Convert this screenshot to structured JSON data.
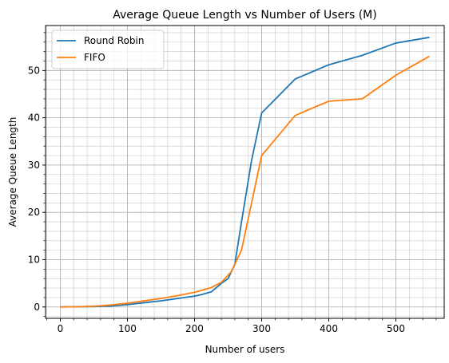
{
  "chart_data": {
    "type": "line",
    "title": "Average Queue Length vs Number of Users (M)",
    "xlabel": "Number of users",
    "ylabel": "Average Queue Length",
    "xlim": [
      -22,
      572
    ],
    "ylim": [
      -2.4,
      59.5
    ],
    "x_ticks": [
      0,
      100,
      200,
      300,
      400,
      500
    ],
    "y_ticks": [
      0,
      10,
      20,
      30,
      40,
      50
    ],
    "x_minor_step": 20,
    "y_minor_step": 2,
    "grid": "major and minor",
    "legend": {
      "position": "top-left",
      "entries": [
        "Round Robin",
        "FIFO"
      ]
    },
    "series": [
      {
        "name": "Round Robin",
        "color": "#1f77b4",
        "x": [
          0,
          25,
          50,
          75,
          100,
          125,
          150,
          175,
          200,
          210,
          225,
          240,
          250,
          260,
          270,
          285,
          300,
          350,
          400,
          450,
          500,
          550
        ],
        "y": [
          0,
          0.05,
          0.1,
          0.2,
          0.5,
          0.9,
          1.3,
          1.8,
          2.3,
          2.6,
          3.2,
          5.0,
          6.0,
          9.0,
          18.0,
          31.0,
          41.0,
          48.2,
          51.2,
          53.2,
          55.8,
          57.0
        ]
      },
      {
        "name": "FIFO",
        "color": "#ff7f0e",
        "x": [
          0,
          25,
          50,
          75,
          100,
          125,
          150,
          175,
          200,
          225,
          240,
          255,
          270,
          285,
          300,
          350,
          400,
          450,
          500,
          550
        ],
        "y": [
          0,
          0.05,
          0.15,
          0.4,
          0.8,
          1.3,
          1.8,
          2.4,
          3.1,
          4.1,
          5.2,
          7.5,
          12.0,
          22.0,
          32.0,
          40.5,
          43.5,
          44.0,
          49.0,
          53.0
        ]
      }
    ]
  }
}
